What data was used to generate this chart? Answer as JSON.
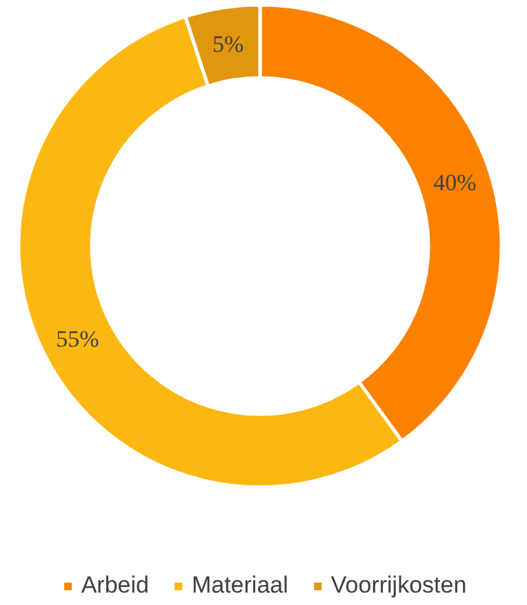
{
  "chart_data": {
    "type": "donut",
    "categories": [
      "Arbeid",
      "Materiaal",
      "Voorrijkosten"
    ],
    "values": [
      40,
      55,
      5
    ],
    "colors": [
      "#fb8200",
      "#fcb711",
      "#e0960e"
    ],
    "value_labels": [
      "40%",
      "55%",
      "5%"
    ],
    "legend": "bottom"
  }
}
